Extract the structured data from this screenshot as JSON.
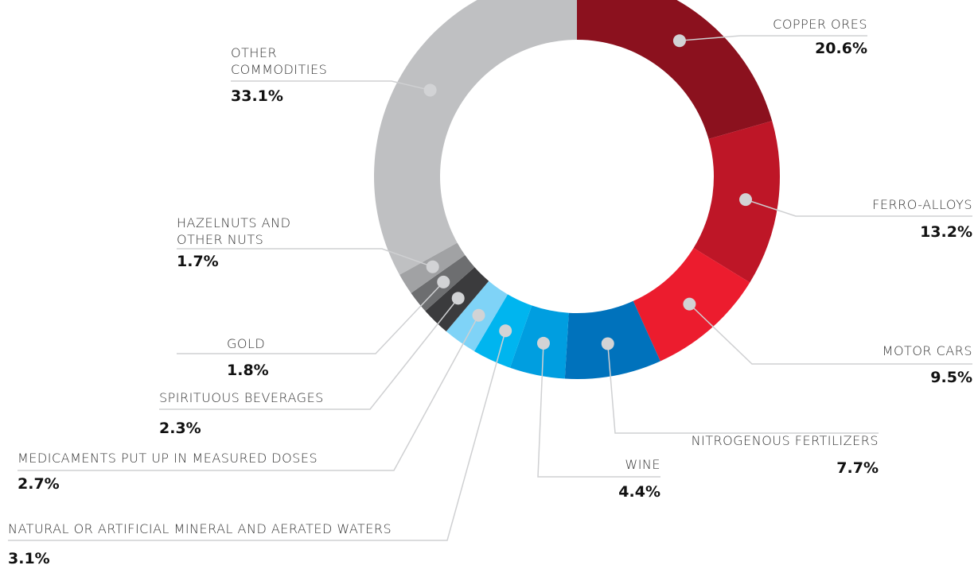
{
  "chart_data": {
    "type": "donut",
    "categories": [
      "COPPER ORES",
      "FERRO-ALLOYS",
      "MOTOR CARS",
      "NITROGENOUS FERTILIZERS",
      "WINE",
      "NATURAL OR ARTIFICIAL MINERAL AND AERATED WATERS",
      "MEDICAMENTS PUT UP IN MEASURED DOSES",
      "SPIRITUOUS BEVERAGES",
      "GOLD",
      "HAZELNUTS AND OTHER NUTS",
      "OTHER COMMODITIES"
    ],
    "values": [
      20.6,
      13.2,
      9.5,
      7.7,
      4.4,
      3.1,
      2.7,
      2.3,
      1.8,
      1.7,
      33.1
    ],
    "value_labels": [
      "20.6%",
      "13.2%",
      "9.5%",
      "7.7%",
      "4.4%",
      "3.1%",
      "2.7%",
      "2.3%",
      "1.8%",
      "1.7%",
      "33.1%"
    ],
    "colors": [
      "#8b111e",
      "#be1627",
      "#ec1c2e",
      "#0072bc",
      "#009ee0",
      "#00b5ef",
      "#7fd3f7",
      "#3b3b3d",
      "#6d6e70",
      "#a1a2a4",
      "#bfc0c2"
    ]
  }
}
